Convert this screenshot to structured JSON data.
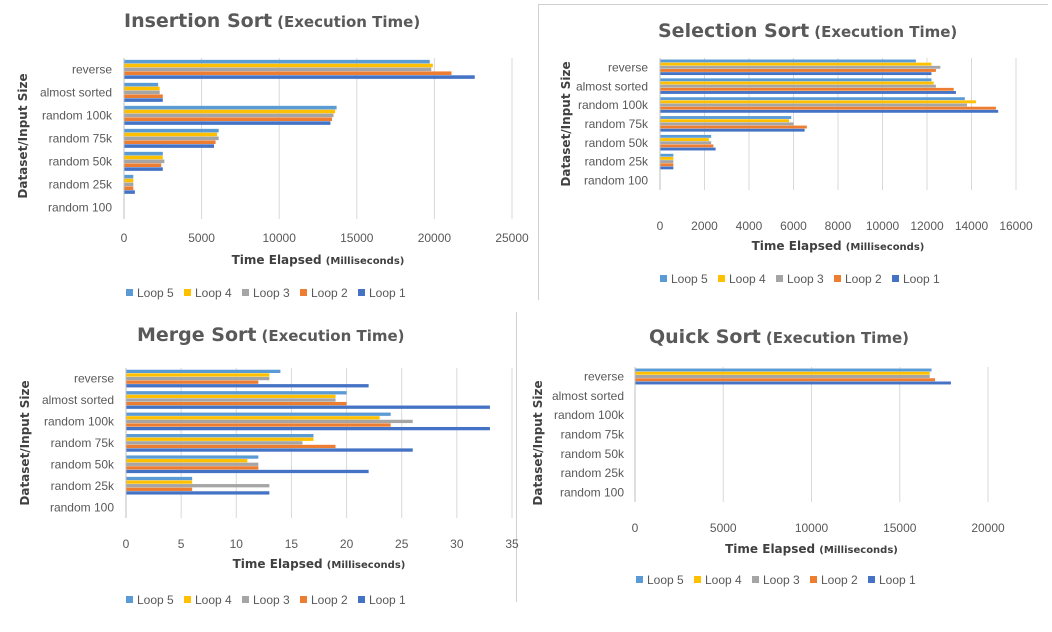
{
  "colors": {
    "Loop 5": "#5b9bd5",
    "Loop 4": "#ffc000",
    "Loop 3": "#a5a5a5",
    "Loop 2": "#ed7d31",
    "Loop 1": "#4472c4"
  },
  "chart_data": [
    {
      "type": "bar",
      "orientation": "horizontal",
      "title": "Insertion Sort",
      "subtitle": "(Execution Time)",
      "xlabel": "Time Elapsed",
      "xlabel_unit": "(Milliseconds)",
      "ylabel": "Dataset/Input Size",
      "categories": [
        "reverse",
        "almost sorted",
        "random 100k",
        "random 75k",
        "random 50k",
        "random 25k",
        "random 100"
      ],
      "xlim": [
        0,
        25000
      ],
      "xticks": [
        0,
        5000,
        10000,
        15000,
        20000,
        25000
      ],
      "xtick_labels": [
        "0",
        "5000",
        "10000",
        "15000",
        "20000",
        "25000"
      ],
      "grid": true,
      "legend_position": "bottom",
      "series": [
        {
          "name": "Loop 5",
          "values": [
            19700,
            2200,
            13700,
            6100,
            2500,
            600,
            5
          ]
        },
        {
          "name": "Loop 4",
          "values": [
            19900,
            2300,
            13600,
            6000,
            2500,
            600,
            5
          ]
        },
        {
          "name": "Loop 3",
          "values": [
            19800,
            2300,
            13500,
            6100,
            2600,
            600,
            5
          ]
        },
        {
          "name": "Loop 2",
          "values": [
            21100,
            2500,
            13400,
            5900,
            2400,
            600,
            5
          ]
        },
        {
          "name": "Loop 1",
          "values": [
            22600,
            2500,
            13300,
            5800,
            2500,
            700,
            5
          ]
        }
      ]
    },
    {
      "type": "bar",
      "orientation": "horizontal",
      "title": "Selection Sort",
      "subtitle": "(Execution Time)",
      "xlabel": "Time Elapsed",
      "xlabel_unit": "(Milliseconds)",
      "ylabel": "Dataset/Input Size",
      "categories": [
        "reverse",
        "almost sorted",
        "random 100k",
        "random 75k",
        "random 50k",
        "random 25k",
        "random 100"
      ],
      "xlim": [
        0,
        16000
      ],
      "xticks": [
        0,
        2000,
        4000,
        6000,
        8000,
        10000,
        12000,
        14000,
        16000
      ],
      "xtick_labels": [
        "0",
        "2000",
        "4000",
        "6000",
        "8000",
        "10000",
        "12000",
        "14000",
        "16000"
      ],
      "grid": true,
      "legend_position": "bottom",
      "series": [
        {
          "name": "Loop 5",
          "values": [
            11500,
            12200,
            13700,
            5900,
            2300,
            600,
            5
          ]
        },
        {
          "name": "Loop 4",
          "values": [
            12200,
            12300,
            14200,
            5800,
            2200,
            600,
            5
          ]
        },
        {
          "name": "Loop 3",
          "values": [
            12600,
            12400,
            13800,
            6000,
            2300,
            600,
            5
          ]
        },
        {
          "name": "Loop 2",
          "values": [
            12400,
            13200,
            15100,
            6600,
            2400,
            600,
            5
          ]
        },
        {
          "name": "Loop 1",
          "values": [
            12200,
            13300,
            15200,
            6500,
            2500,
            600,
            5
          ]
        }
      ]
    },
    {
      "type": "bar",
      "orientation": "horizontal",
      "title": "Merge Sort",
      "subtitle": "(Execution Time)",
      "xlabel": "Time Elapsed",
      "xlabel_unit": "(Milliseconds)",
      "ylabel": "Dataset/Input Size",
      "categories": [
        "reverse",
        "almost sorted",
        "random 100k",
        "random 75k",
        "random 50k",
        "random 25k",
        "random 100"
      ],
      "xlim": [
        0,
        35
      ],
      "xticks": [
        0,
        5,
        10,
        15,
        20,
        25,
        30,
        35
      ],
      "xtick_labels": [
        "0",
        "5",
        "10",
        "15",
        "20",
        "25",
        "30",
        "35"
      ],
      "grid": true,
      "legend_position": "bottom",
      "series": [
        {
          "name": "Loop 5",
          "values": [
            14,
            20,
            24,
            17,
            12,
            6,
            0
          ]
        },
        {
          "name": "Loop 4",
          "values": [
            13,
            19,
            23,
            17,
            11,
            6,
            0
          ]
        },
        {
          "name": "Loop 3",
          "values": [
            13,
            19,
            26,
            16,
            12,
            13,
            0
          ]
        },
        {
          "name": "Loop 2",
          "values": [
            12,
            20,
            24,
            19,
            12,
            6,
            0
          ]
        },
        {
          "name": "Loop 1",
          "values": [
            22,
            33,
            33,
            26,
            22,
            13,
            0
          ]
        }
      ]
    },
    {
      "type": "bar",
      "orientation": "horizontal",
      "title": "Quick Sort",
      "subtitle": "(Execution Time)",
      "xlabel": "Time Elapsed",
      "xlabel_unit": "(Milliseconds)",
      "ylabel": "Dataset/Input Size",
      "categories": [
        "reverse",
        "almost sorted",
        "random 100k",
        "random 75k",
        "random 50k",
        "random 25k",
        "random 100"
      ],
      "xlim": [
        0,
        20000
      ],
      "xticks": [
        0,
        5000,
        10000,
        15000,
        20000
      ],
      "xtick_labels": [
        "0",
        "5000",
        "10000",
        "15000",
        "20000"
      ],
      "grid": true,
      "legend_position": "bottom",
      "series": [
        {
          "name": "Loop 5",
          "values": [
            16800,
            0,
            0,
            0,
            0,
            0,
            0
          ]
        },
        {
          "name": "Loop 4",
          "values": [
            16700,
            0,
            0,
            0,
            0,
            0,
            0
          ]
        },
        {
          "name": "Loop 3",
          "values": [
            16700,
            0,
            0,
            0,
            0,
            0,
            0
          ]
        },
        {
          "name": "Loop 2",
          "values": [
            17000,
            0,
            0,
            0,
            0,
            0,
            0
          ]
        },
        {
          "name": "Loop 1",
          "values": [
            17900,
            0,
            0,
            0,
            0,
            0,
            0
          ]
        }
      ]
    }
  ]
}
